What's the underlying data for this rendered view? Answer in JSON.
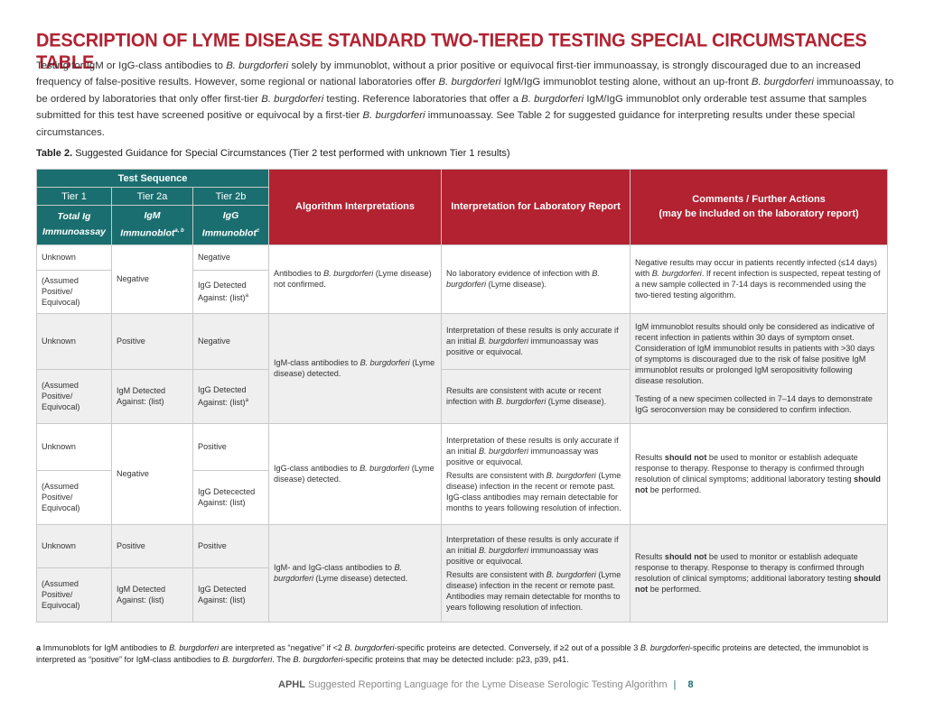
{
  "title": "DESCRIPTION OF LYME DISEASE STANDARD TWO-TIERED TESTING SPECIAL CIRCUMSTANCES TABLE",
  "intro": {
    "p1": "Testing for IgM or IgG-class antibodies to ",
    "p1_italic": "B. burgdorferi",
    "p2": " solely by immunoblot, without a prior positive or equivocal first-tier immunoassay, is strongly discouraged due to an increased frequency of false-positive results. However, some regional or national laboratories offer ",
    "p3": " IgM/IgG immunoblot testing alone, without an up-front ",
    "p4": " immunoassay, to be ordered by laboratories that only offer first-tier ",
    "p5": " testing. Reference laboratories that offer a ",
    "p6": " IgM/IgG immunoblot only orderable test assume that samples submitted for this test have screened positive or equivocal by a first-tier ",
    "p7": " immunoassay. See Table 2 for suggested guidance for interpreting results under these special circumstances."
  },
  "caption": {
    "label": "Table 2.",
    "text": " Suggested Guidance for Special Circumstances (Tier 2 test performed with unknown Tier 1 results)"
  },
  "headers": {
    "test_sequence": "Test Sequence",
    "tier1": "Tier 1",
    "tier2a": "Tier 2a",
    "tier2b": "Tier 2b",
    "tier1_sub1": "Total Ig",
    "tier1_sub2": "Immunoassay",
    "tier2a_sub1": "IgM",
    "tier2a_sub2": "Immunoblot",
    "tier2a_sup": "a, b",
    "tier2b_sub1": "IgG",
    "tier2b_sub2": "Immunoblot",
    "tier2b_sup": "c",
    "algorithm": "Algorithm Interpretations",
    "lab_report": "Interpretation for Laboratory Report",
    "comments_1": "Comments / Further Actions",
    "comments_2": "(may be included on the laboratory report)"
  },
  "rows": {
    "unknown": "Unknown",
    "assumed": "(Assumed Positive/ Equivocal)",
    "negative": "Negative",
    "positive": "Positive",
    "igg_detected_a": "IgG Detected Against: (list)",
    "igg_detected": "IgG Detected Against: (list)",
    "igg_detected_typo": "IgG Detecected Against: (list)",
    "igm_detected": "IgM Detected Against: (list)",
    "sup_a": "a",
    "g1_algo_a": "Antibodies to ",
    "g1_algo_b": " (Lyme disease) not confirmed.",
    "g1_lab_a": "No laboratory evidence of infection with ",
    "g1_lab_b": " (Lyme disease).",
    "g1_comment_a": "Negative results may occur in patients recently infected (≤14 days) with ",
    "g1_comment_b": ". If recent infection is suspected, repeat testing of a new sample collected in 7-14 days is recommended using the two-tiered testing algorithm.",
    "g2_algo_a": "IgM-class antibodies to ",
    "g2_algo_b": " (Lyme disease) detected.",
    "g2_lab1_a": "Interpretation of these results is only accurate if an initial ",
    "g2_lab1_b": " immunoassay was positive or equivocal.",
    "g2_lab2_a": "Results are consistent with acute or recent infection with ",
    "g2_lab2_b": " (Lyme disease).",
    "g2_comment1": "IgM immunoblot results should only be considered as indicative of recent infection in patients within 30 days of symptom onset. Consideration of IgM immunoblot results in patients with >30 days of symptoms is discouraged due to the risk of false positive IgM immunoblot results or prolonged IgM seropositivity following disease resolution.",
    "g2_comment2": "Testing of a new specimen collected in 7–14 days to demonstrate IgG seroconversion may be considered to confirm infection.",
    "g3_algo_a": "IgG-class antibodies to ",
    "g3_algo_b": " (Lyme disease) detected.",
    "g3_lab1_a": "Interpretation of these results is only accurate if an initial ",
    "g3_lab1_b": " immunoassay was positive or equivocal.",
    "g3_lab2_a": "Results are consistent with ",
    "g3_lab2_b": " (Lyme disease) infection in the recent or remote past. IgG-class antibodies may remain detectable for months to years following resolution of infection.",
    "g3_comment_a": "Results ",
    "g3_comment_bold1": "should not",
    "g3_comment_b": " be used to monitor or establish adequate response to therapy. Response to therapy is confirmed through resolution of clinical symptoms; additional laboratory testing ",
    "g3_comment_bold2": "should not",
    "g3_comment_c": " be performed.",
    "g4_algo_a": "IgM- and IgG-class antibodies to ",
    "g4_algo_b": " (Lyme disease) detected.",
    "g4_lab1_a": "Interpretation of these results is only accurate if an initial ",
    "g4_lab1_b": " immunoassay was positive or equivocal.",
    "g4_lab2_a": "Results are consistent with ",
    "g4_lab2_b": " (Lyme disease) infection in the recent or remote past. Antibodies may remain detectable for months to years following resolution of infection.",
    "organism": "B. burgdorferi"
  },
  "footnote": {
    "label": "a",
    "t1": " Immunoblots for IgM antibodies to ",
    "t2": " are interpreted as “negative” if <2 ",
    "t3": "-specific proteins are detected. Conversely, if ≥2 out of a possible 3 ",
    "t4": "-specific proteins are detected, the immunoblot is interpreted as “positive” for IgM-class antibodies to ",
    "t5": ". The ",
    "t6": "-specific proteins that may be detected include: p23, p39, p41."
  },
  "footer": {
    "brand": "APHL",
    "text": "Suggested Reporting Language for the Lyme Disease Serologic Testing Algorithm",
    "sep": "|",
    "page": "8"
  },
  "colors": {
    "accent_red": "#b22231",
    "teal": "#1a6e6f"
  }
}
